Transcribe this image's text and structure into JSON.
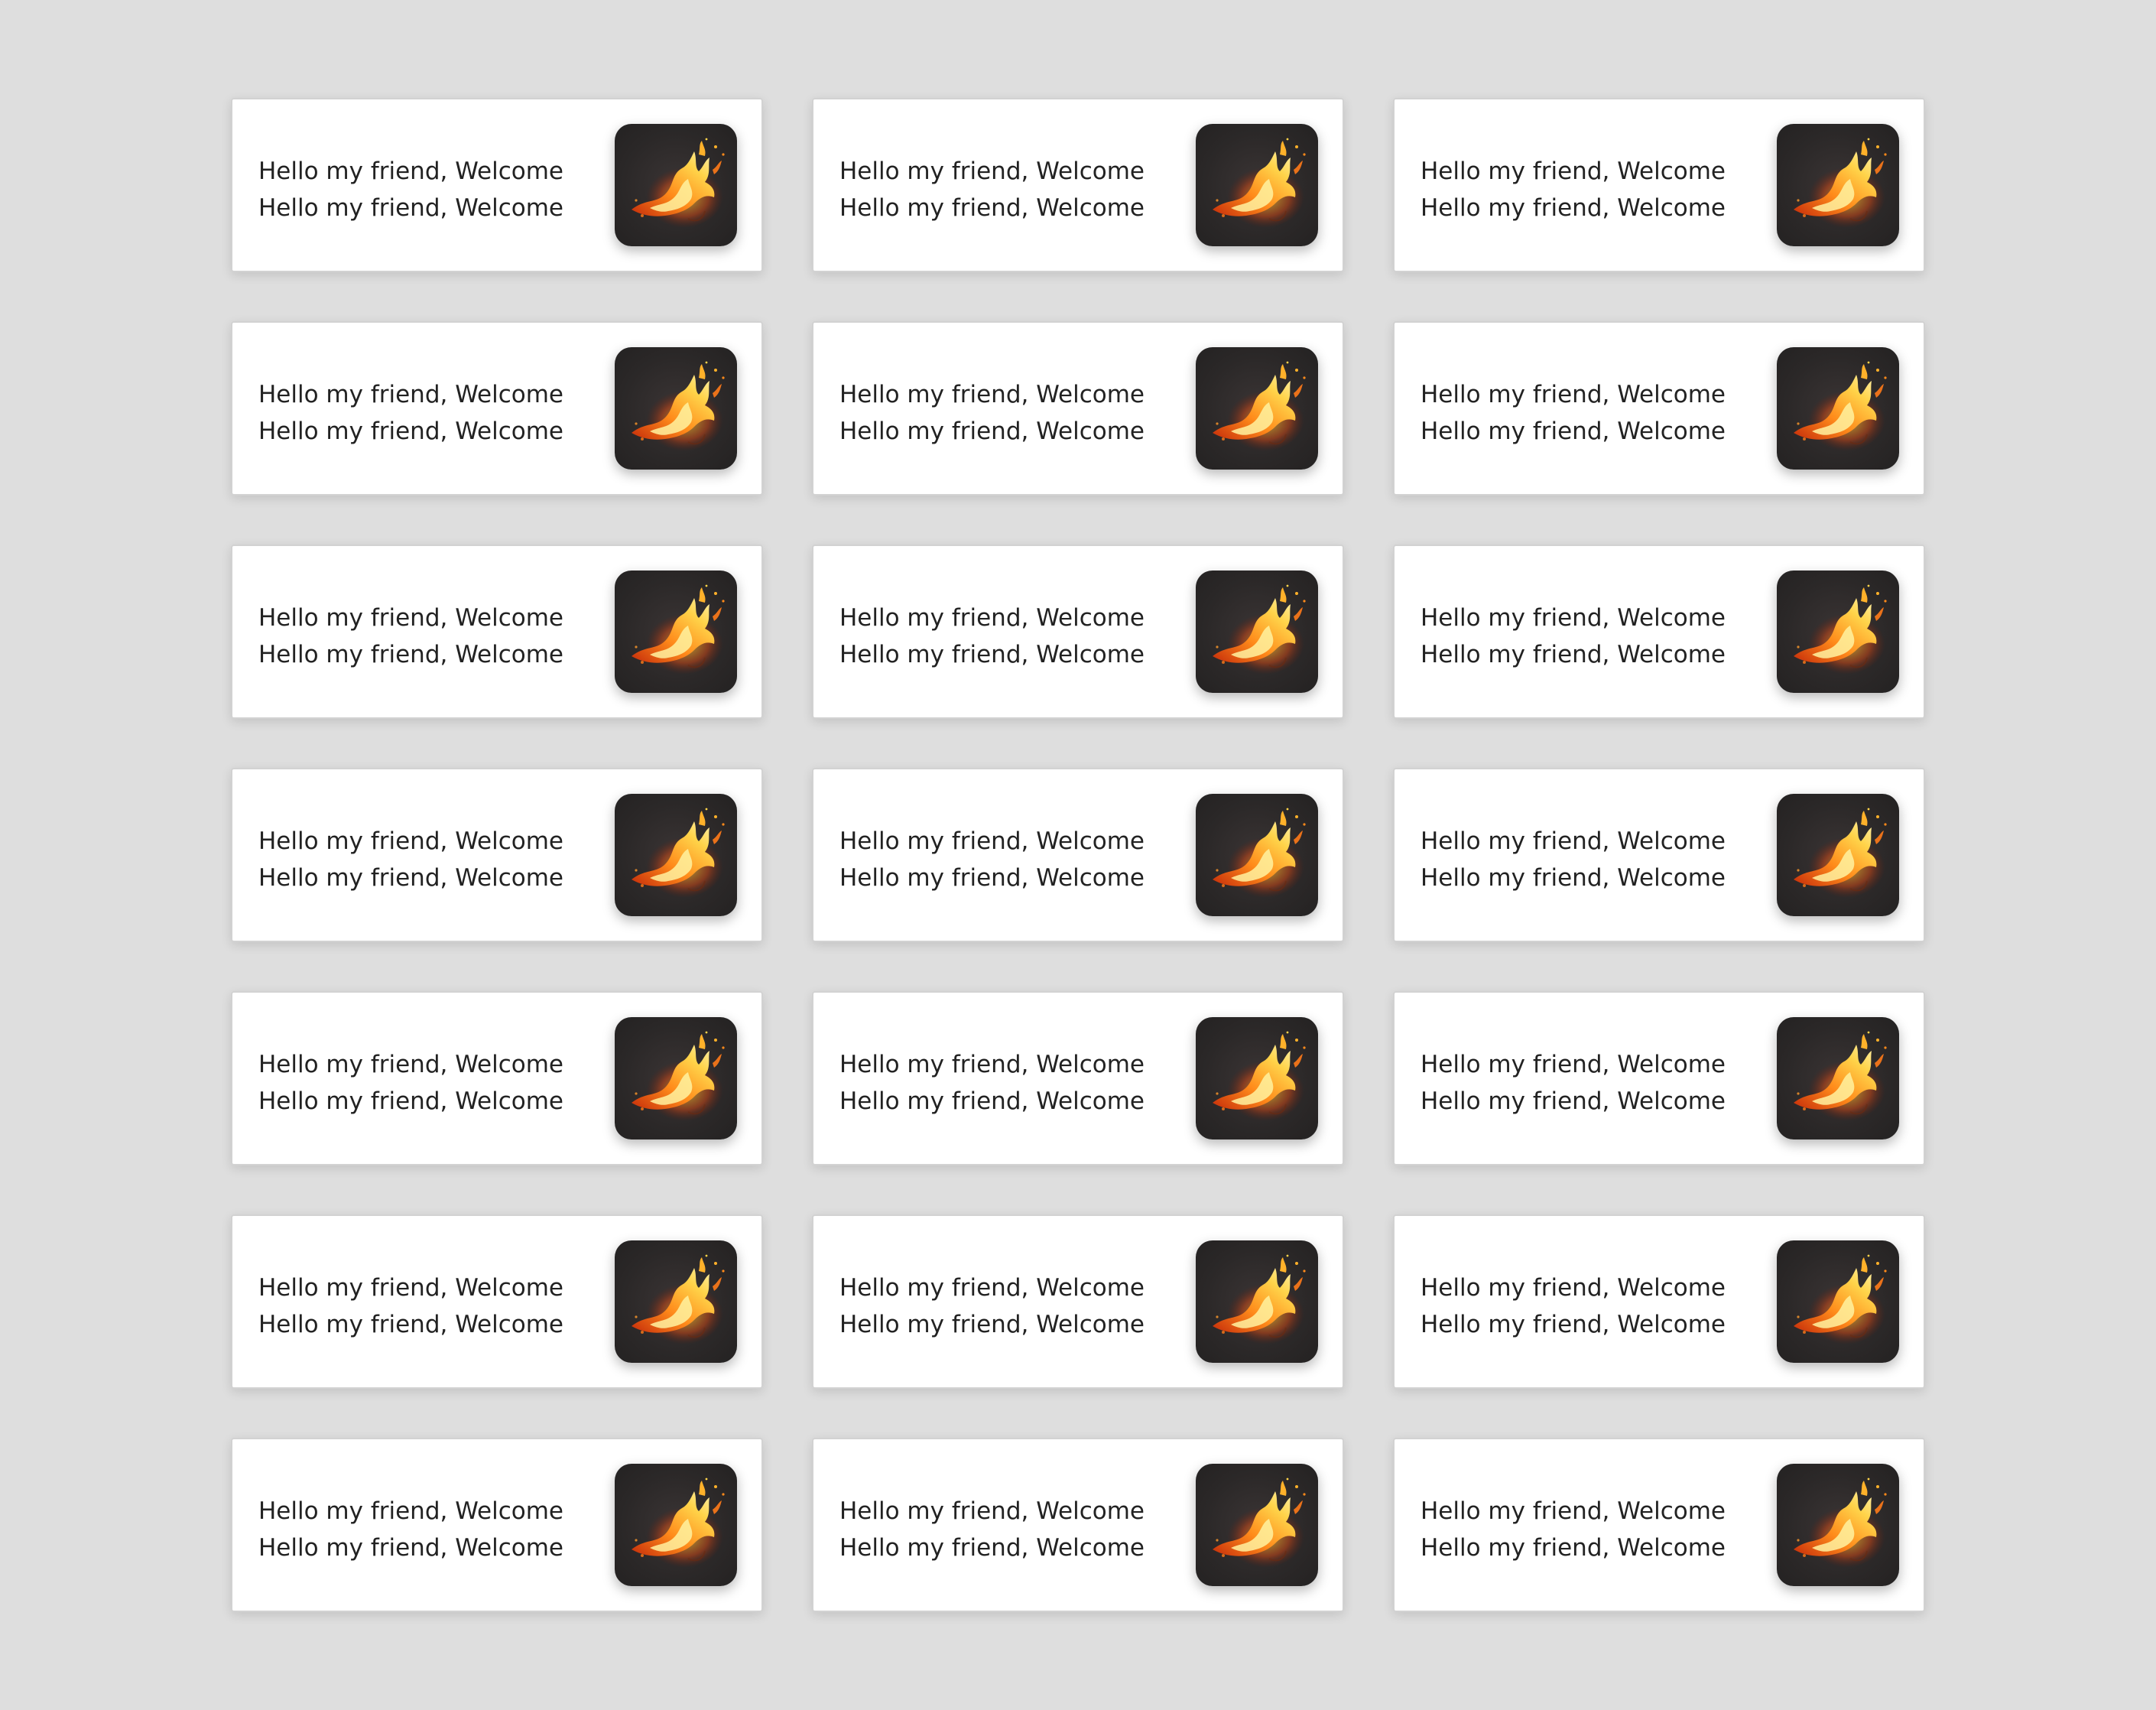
{
  "colors": {
    "background": "#dedede",
    "card": "#ffffff",
    "text": "#222222",
    "thumbnail": "#2b2828",
    "flame": "#ff8a1a"
  },
  "cards": [
    {
      "line1": "Hello my friend, Welcome",
      "line2": "Hello my friend, Welcome",
      "image_icon": "flame-icon"
    },
    {
      "line1": "Hello my friend, Welcome",
      "line2": "Hello my friend, Welcome",
      "image_icon": "flame-icon"
    },
    {
      "line1": "Hello my friend, Welcome",
      "line2": "Hello my friend, Welcome",
      "image_icon": "flame-icon"
    },
    {
      "line1": "Hello my friend, Welcome",
      "line2": "Hello my friend, Welcome",
      "image_icon": "flame-icon"
    },
    {
      "line1": "Hello my friend, Welcome",
      "line2": "Hello my friend, Welcome",
      "image_icon": "flame-icon"
    },
    {
      "line1": "Hello my friend, Welcome",
      "line2": "Hello my friend, Welcome",
      "image_icon": "flame-icon"
    },
    {
      "line1": "Hello my friend, Welcome",
      "line2": "Hello my friend, Welcome",
      "image_icon": "flame-icon"
    },
    {
      "line1": "Hello my friend, Welcome",
      "line2": "Hello my friend, Welcome",
      "image_icon": "flame-icon"
    },
    {
      "line1": "Hello my friend, Welcome",
      "line2": "Hello my friend, Welcome",
      "image_icon": "flame-icon"
    },
    {
      "line1": "Hello my friend, Welcome",
      "line2": "Hello my friend, Welcome",
      "image_icon": "flame-icon"
    },
    {
      "line1": "Hello my friend, Welcome",
      "line2": "Hello my friend, Welcome",
      "image_icon": "flame-icon"
    },
    {
      "line1": "Hello my friend, Welcome",
      "line2": "Hello my friend, Welcome",
      "image_icon": "flame-icon"
    },
    {
      "line1": "Hello my friend, Welcome",
      "line2": "Hello my friend, Welcome",
      "image_icon": "flame-icon"
    },
    {
      "line1": "Hello my friend, Welcome",
      "line2": "Hello my friend, Welcome",
      "image_icon": "flame-icon"
    },
    {
      "line1": "Hello my friend, Welcome",
      "line2": "Hello my friend, Welcome",
      "image_icon": "flame-icon"
    },
    {
      "line1": "Hello my friend, Welcome",
      "line2": "Hello my friend, Welcome",
      "image_icon": "flame-icon"
    },
    {
      "line1": "Hello my friend, Welcome",
      "line2": "Hello my friend, Welcome",
      "image_icon": "flame-icon"
    },
    {
      "line1": "Hello my friend, Welcome",
      "line2": "Hello my friend, Welcome",
      "image_icon": "flame-icon"
    },
    {
      "line1": "Hello my friend, Welcome",
      "line2": "Hello my friend, Welcome",
      "image_icon": "flame-icon"
    },
    {
      "line1": "Hello my friend, Welcome",
      "line2": "Hello my friend, Welcome",
      "image_icon": "flame-icon"
    },
    {
      "line1": "Hello my friend, Welcome",
      "line2": "Hello my friend, Welcome",
      "image_icon": "flame-icon"
    }
  ]
}
